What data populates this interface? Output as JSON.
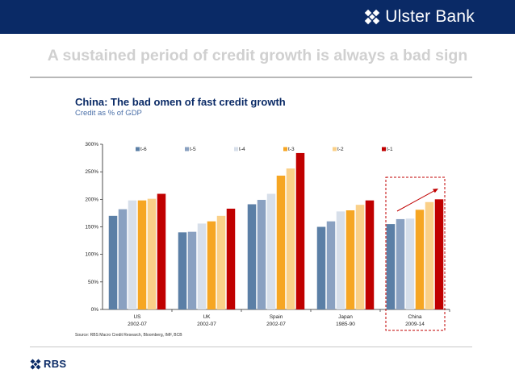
{
  "header": {
    "brand_name": "Ulster Bank",
    "brand_logo_icon": "daisy-wheel-icon",
    "background_color": "#0a2a66"
  },
  "slide": {
    "headline": "A sustained period of credit growth is always a bad sign"
  },
  "chart": {
    "source": "Source: RBS Macro Credit Research, Bloomberg, IMF, BCB"
  },
  "footer": {
    "logo_text": "RBS",
    "logo_icon": "daisy-wheel-icon"
  },
  "chart_data": {
    "type": "bar",
    "title": "China: The bad omen of fast credit growth",
    "subtitle": "Credit as % of GDP",
    "categories": [
      {
        "name": "US",
        "period": "2002-07"
      },
      {
        "name": "UK",
        "period": "2002-07"
      },
      {
        "name": "Spain",
        "period": "2002-07"
      },
      {
        "name": "Japan",
        "period": "1985-90"
      },
      {
        "name": "China",
        "period": "2009-14"
      }
    ],
    "series": [
      {
        "name": "t-6",
        "color": "#5b7fa6",
        "values": [
          170,
          140,
          191,
          150,
          155
        ]
      },
      {
        "name": "t-5",
        "color": "#8aa1c1",
        "values": [
          182,
          141,
          199,
          160,
          164
        ]
      },
      {
        "name": "t-4",
        "color": "#d7dfea",
        "values": [
          198,
          156,
          210,
          178,
          165
        ]
      },
      {
        "name": "t-3",
        "color": "#f6a623",
        "values": [
          198,
          160,
          243,
          180,
          181
        ]
      },
      {
        "name": "t-2",
        "color": "#fad088",
        "values": [
          201,
          170,
          256,
          190,
          195
        ]
      },
      {
        "name": "t-1",
        "color": "#c00000",
        "values": [
          210,
          183,
          284,
          198,
          200
        ]
      }
    ],
    "xlabel": "",
    "ylabel": "",
    "ylim": [
      0,
      300
    ],
    "yticks": [
      0,
      50,
      100,
      150,
      200,
      250,
      300
    ],
    "ytick_suffix": "%",
    "legend_position": "top",
    "grid": false,
    "highlight": {
      "category": "China",
      "style": "dashed box",
      "color": "#c00000"
    },
    "trend_arrow": {
      "category": "China",
      "direction": "up",
      "color": "#c00000"
    }
  }
}
